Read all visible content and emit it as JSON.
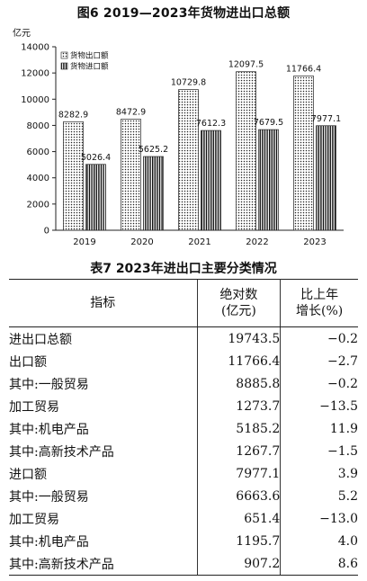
{
  "figure_title": "图6  2019—2023年货物进出口总额",
  "chart_data": {
    "type": "bar",
    "categories": [
      "2019",
      "2020",
      "2021",
      "2022",
      "2023"
    ],
    "series": [
      {
        "name": "货物出口额",
        "values": [
          8282.9,
          8472.9,
          10729.8,
          12097.5,
          11766.4
        ]
      },
      {
        "name": "货物进口额",
        "values": [
          5026.4,
          5625.2,
          7612.3,
          7679.5,
          7977.1
        ]
      }
    ],
    "data_labels": [
      [
        "8282.9",
        "8472.9",
        "10729.8",
        "12097.5",
        "11766.4"
      ],
      [
        "5026.4",
        "5625.2",
        "7612.3",
        "7679.5",
        "7977.1"
      ]
    ],
    "ylabel": "亿元",
    "ylim": [
      0,
      14000
    ],
    "yticks": [
      "0",
      "2000",
      "4000",
      "6000",
      "8000",
      "10000",
      "12000",
      "14000"
    ],
    "legend_position": "top-left",
    "grid": false
  },
  "table": {
    "title": "表7  2023年进出口主要分类情况",
    "headers": {
      "indicator": "指标",
      "absolute_line1": "绝对数",
      "absolute_line2": "(亿元)",
      "change_line1": "比上年",
      "change_line2": "增长(%)"
    },
    "rows": [
      {
        "label": "进出口总额",
        "value": "19743.5",
        "change": "−0.2"
      },
      {
        "label": "出口额",
        "value": "11766.4",
        "change": "−2.7"
      },
      {
        "label": "其中:一般贸易",
        "value": "8885.8",
        "change": "−0.2"
      },
      {
        "label": "加工贸易",
        "value": "1273.7",
        "change": "−13.5"
      },
      {
        "label": "其中:机电产品",
        "value": "5185.2",
        "change": "11.9"
      },
      {
        "label": "其中:高新技术产品",
        "value": "1267.7",
        "change": "−1.5"
      },
      {
        "label": "进口额",
        "value": "7977.1",
        "change": "3.9"
      },
      {
        "label": "其中:一般贸易",
        "value": "6663.6",
        "change": "5.2"
      },
      {
        "label": "加工贸易",
        "value": "651.4",
        "change": "−13.0"
      },
      {
        "label": "其中:机电产品",
        "value": "1195.7",
        "change": "4.0"
      },
      {
        "label": "其中:高新技术产品",
        "value": "907.2",
        "change": "8.6"
      }
    ]
  }
}
